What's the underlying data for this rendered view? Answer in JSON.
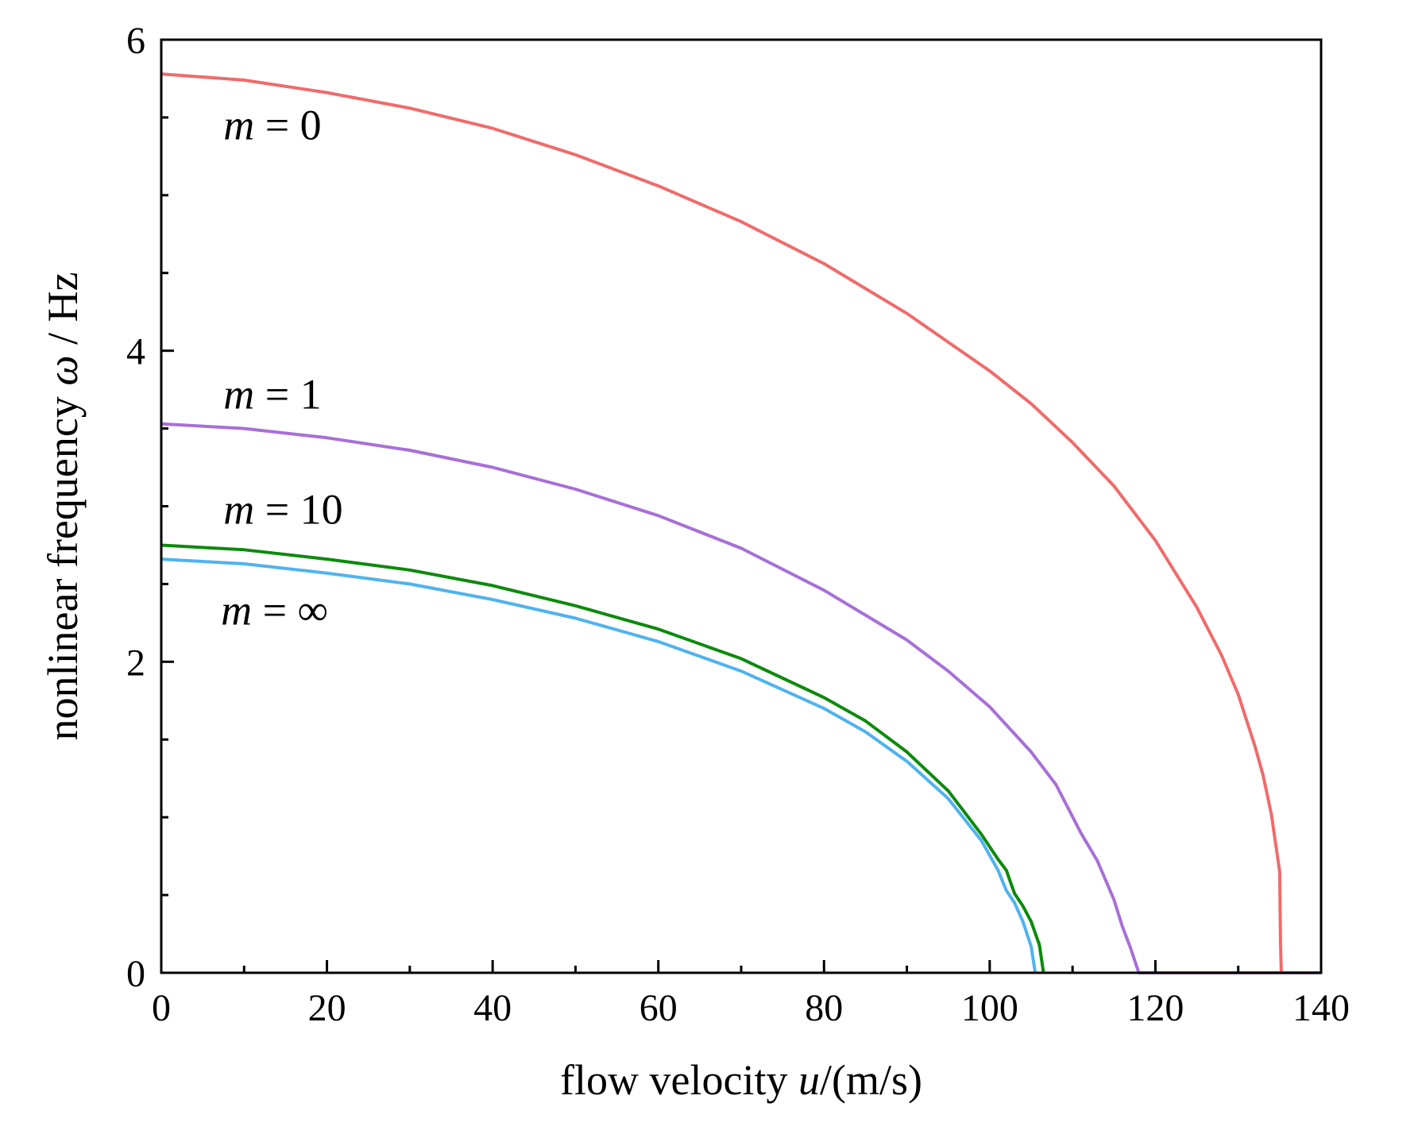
{
  "chart_data": {
    "type": "line",
    "title": "",
    "xlabel": {
      "prefix": "flow velocity ",
      "var": "u",
      "suffix": "/(m/s)"
    },
    "ylabel": {
      "prefix": "nonlinear frequency ",
      "var": "ω",
      "suffix": " / Hz"
    },
    "xlim": [
      0,
      140
    ],
    "ylim": [
      0,
      6
    ],
    "x_ticks": [
      0,
      20,
      40,
      60,
      80,
      100,
      120,
      140
    ],
    "y_ticks": [
      0,
      2,
      4,
      6
    ],
    "x_minor_step": 10,
    "y_minor_step": 0.5,
    "grid": false,
    "legend": "inline labels",
    "series": [
      {
        "name": "m = 0",
        "var": "m",
        "value": "0",
        "color": "#f06b6b",
        "label_pos": [
          7.5,
          5.45
        ],
        "points": [
          [
            0,
            5.78
          ],
          [
            10,
            5.74
          ],
          [
            20,
            5.66
          ],
          [
            30,
            5.56
          ],
          [
            40,
            5.43
          ],
          [
            50,
            5.26
          ],
          [
            60,
            5.06
          ],
          [
            70,
            4.83
          ],
          [
            80,
            4.56
          ],
          [
            90,
            4.24
          ],
          [
            100,
            3.87
          ],
          [
            105,
            3.66
          ],
          [
            110,
            3.41
          ],
          [
            115,
            3.13
          ],
          [
            120,
            2.78
          ],
          [
            125,
            2.35
          ],
          [
            128,
            2.04
          ],
          [
            130,
            1.79
          ],
          [
            132,
            1.46
          ],
          [
            133,
            1.27
          ],
          [
            134,
            1.02
          ],
          [
            135,
            0.65
          ],
          [
            135.1,
            0.2
          ],
          [
            135.2,
            0
          ]
        ]
      },
      {
        "name": "m = 1",
        "var": "m",
        "value": "1",
        "color": "#a86fd8",
        "label_pos": [
          7.5,
          3.72
        ],
        "points": [
          [
            0,
            3.53
          ],
          [
            10,
            3.5
          ],
          [
            20,
            3.44
          ],
          [
            30,
            3.36
          ],
          [
            40,
            3.25
          ],
          [
            50,
            3.11
          ],
          [
            60,
            2.94
          ],
          [
            70,
            2.73
          ],
          [
            80,
            2.46
          ],
          [
            90,
            2.14
          ],
          [
            95,
            1.94
          ],
          [
            100,
            1.71
          ],
          [
            105,
            1.42
          ],
          [
            108,
            1.21
          ],
          [
            111,
            0.9
          ],
          [
            113,
            0.72
          ],
          [
            115,
            0.47
          ],
          [
            116,
            0.3
          ],
          [
            117,
            0.16
          ],
          [
            118,
            0
          ],
          [
            120,
            0
          ],
          [
            135,
            0
          ],
          [
            140,
            0
          ]
        ]
      },
      {
        "name": "m = 10",
        "var": "m",
        "value": "10",
        "color": "#0c8a0c",
        "label_pos": [
          7.5,
          2.98
        ],
        "points": [
          [
            0,
            2.75
          ],
          [
            10,
            2.72
          ],
          [
            20,
            2.66
          ],
          [
            30,
            2.59
          ],
          [
            40,
            2.49
          ],
          [
            50,
            2.36
          ],
          [
            60,
            2.21
          ],
          [
            70,
            2.02
          ],
          [
            80,
            1.77
          ],
          [
            85,
            1.62
          ],
          [
            90,
            1.42
          ],
          [
            95,
            1.17
          ],
          [
            99,
            0.89
          ],
          [
            101,
            0.73
          ],
          [
            102,
            0.66
          ],
          [
            103,
            0.51
          ],
          [
            104,
            0.43
          ],
          [
            105,
            0.33
          ],
          [
            106,
            0.18
          ],
          [
            106.5,
            0
          ]
        ]
      },
      {
        "name": "m = ∞",
        "var": "m",
        "value": "∞",
        "color": "#4fb3ee",
        "label_pos": [
          7.2,
          2.33
        ],
        "points": [
          [
            0,
            2.66
          ],
          [
            10,
            2.63
          ],
          [
            20,
            2.57
          ],
          [
            30,
            2.5
          ],
          [
            40,
            2.4
          ],
          [
            50,
            2.28
          ],
          [
            60,
            2.13
          ],
          [
            70,
            1.94
          ],
          [
            80,
            1.7
          ],
          [
            85,
            1.55
          ],
          [
            90,
            1.36
          ],
          [
            95,
            1.12
          ],
          [
            99,
            0.85
          ],
          [
            101,
            0.66
          ],
          [
            102,
            0.53
          ],
          [
            103,
            0.45
          ],
          [
            104,
            0.33
          ],
          [
            105,
            0.17
          ],
          [
            105.5,
            0
          ]
        ]
      }
    ]
  }
}
